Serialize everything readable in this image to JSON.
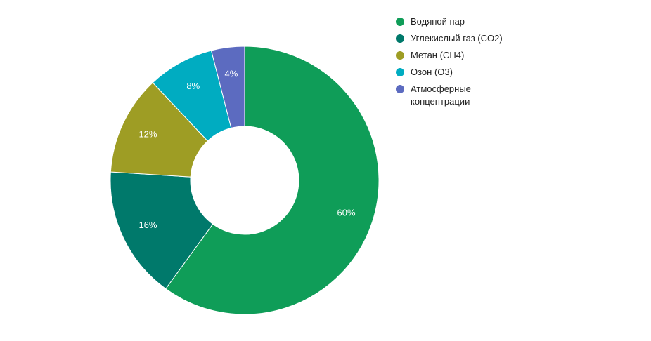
{
  "chart_data": {
    "type": "pie",
    "categories": [
      "Водяной пар",
      "Углекислый газ (CO2)",
      "Метан (CH4)",
      "Озон (O3)",
      "Атмосферные концентрации"
    ],
    "values": [
      60,
      16,
      12,
      8,
      4
    ],
    "value_labels": [
      "60%",
      "16%",
      "12%",
      "8%",
      "4%"
    ],
    "colors": [
      "#0f9d58",
      "#00796b",
      "#9e9d24",
      "#00acc1",
      "#5c6bc0"
    ],
    "legend": "right"
  }
}
